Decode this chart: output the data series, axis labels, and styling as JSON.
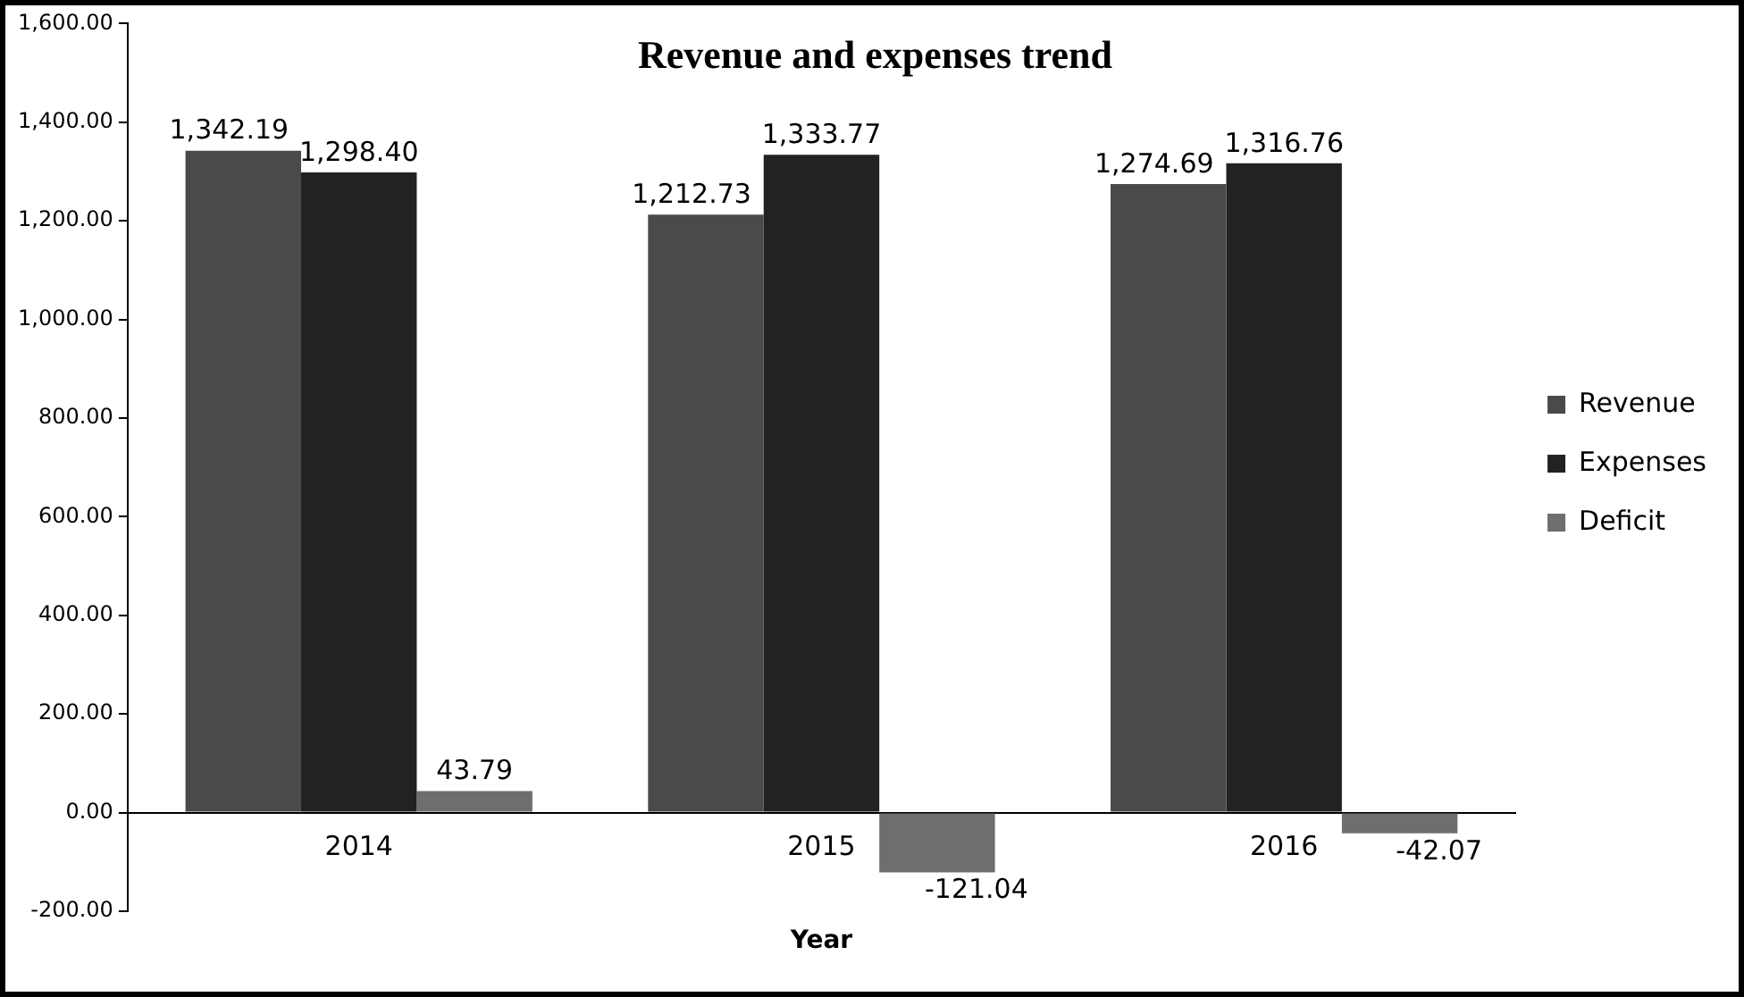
{
  "chart_data": {
    "type": "bar",
    "title": "Revenue and expenses trend",
    "xlabel": "Year",
    "categories": [
      "2014",
      "2015",
      "2016"
    ],
    "series": [
      {
        "name": "Revenue",
        "color": "#4a4a4a",
        "values": [
          1342.19,
          1212.73,
          1274.69
        ],
        "value_labels": [
          "1,342.19",
          "1,212.73",
          "1,274.69"
        ]
      },
      {
        "name": "Expenses",
        "color": "#222222",
        "values": [
          1298.4,
          1333.77,
          1316.76
        ],
        "value_labels": [
          "1,298.40",
          "1,333.77",
          "1,316.76"
        ]
      },
      {
        "name": "Deficit",
        "color": "#6e6e6e",
        "values": [
          43.79,
          -121.04,
          -42.07
        ],
        "value_labels": [
          "43.79",
          "-121.04",
          "-42.07"
        ]
      }
    ],
    "ylim": [
      -200,
      1600
    ],
    "yticks": [
      {
        "value": -200,
        "label": "-200.00"
      },
      {
        "value": 0,
        "label": "0.00"
      },
      {
        "value": 200,
        "label": "200.00"
      },
      {
        "value": 400,
        "label": "400.00"
      },
      {
        "value": 600,
        "label": "600.00"
      },
      {
        "value": 800,
        "label": "800.00"
      },
      {
        "value": 1000,
        "label": "1,000.00"
      },
      {
        "value": 1200,
        "label": "1,200.00"
      },
      {
        "value": 1400,
        "label": "1,400.00"
      },
      {
        "value": 1600,
        "label": "1,600.00"
      }
    ],
    "grid": false,
    "legend": "right"
  }
}
